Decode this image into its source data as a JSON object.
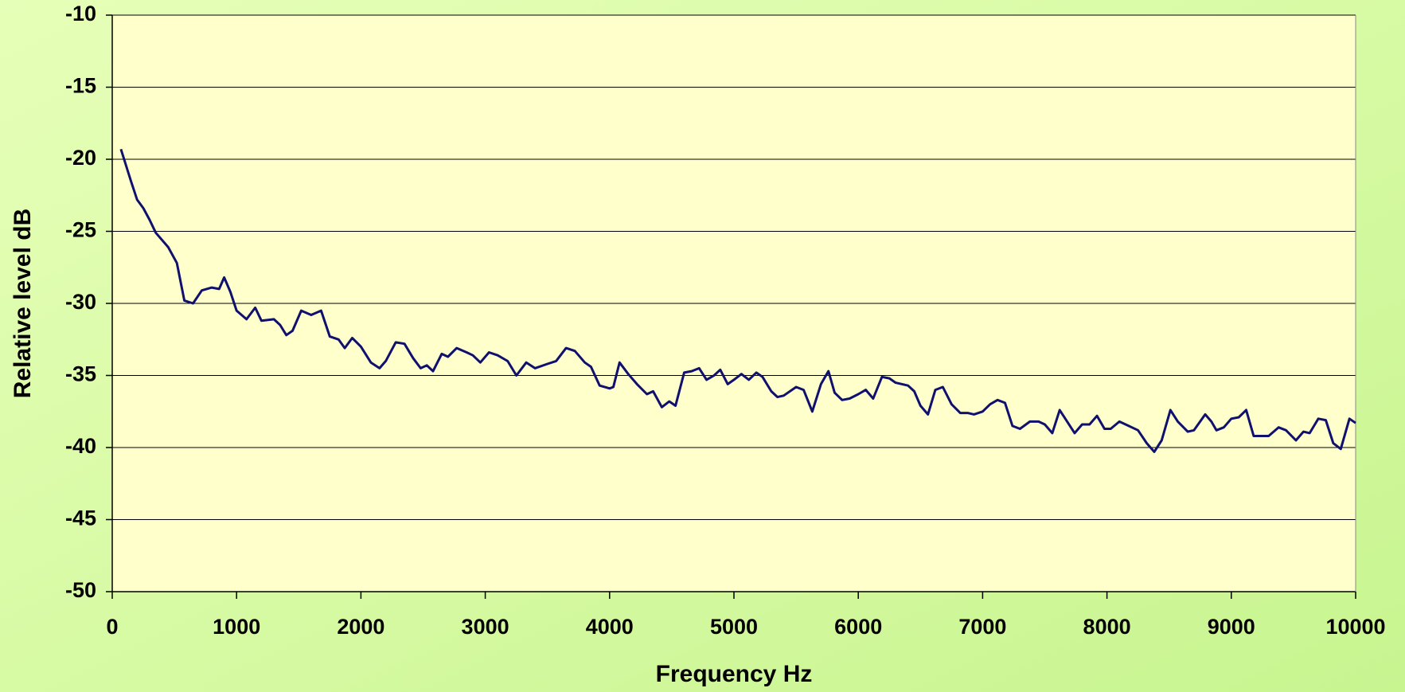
{
  "chart_data": {
    "type": "line",
    "x_label": "Frequency Hz",
    "y_label": "Relative level dB",
    "x": [
      70,
      150,
      200,
      250,
      300,
      350,
      450,
      520,
      580,
      650,
      720,
      800,
      860,
      900,
      950,
      1000,
      1080,
      1150,
      1200,
      1300,
      1350,
      1400,
      1450,
      1520,
      1600,
      1680,
      1750,
      1820,
      1870,
      1930,
      2000,
      2080,
      2150,
      2200,
      2280,
      2350,
      2420,
      2480,
      2530,
      2580,
      2650,
      2700,
      2770,
      2850,
      2900,
      2960,
      3030,
      3100,
      3180,
      3250,
      3330,
      3400,
      3500,
      3570,
      3650,
      3720,
      3800,
      3850,
      3920,
      4000,
      4030,
      4080,
      4150,
      4220,
      4300,
      4350,
      4420,
      4480,
      4530,
      4600,
      4660,
      4720,
      4780,
      4840,
      4890,
      4950,
      5000,
      5060,
      5120,
      5180,
      5230,
      5300,
      5350,
      5400,
      5500,
      5560,
      5630,
      5700,
      5760,
      5810,
      5870,
      5930,
      6000,
      6060,
      6120,
      6190,
      6250,
      6300,
      6400,
      6450,
      6500,
      6560,
      6620,
      6680,
      6750,
      6820,
      6880,
      6930,
      7000,
      7060,
      7120,
      7180,
      7240,
      7300,
      7380,
      7450,
      7500,
      7560,
      7620,
      7680,
      7740,
      7800,
      7860,
      7920,
      7980,
      8030,
      8100,
      8150,
      8250,
      8320,
      8380,
      8440,
      8510,
      8570,
      8650,
      8700,
      8790,
      8840,
      8880,
      8940,
      9000,
      9060,
      9120,
      9180,
      9250,
      9300,
      9380,
      9440,
      9520,
      9580,
      9630,
      9700,
      9760,
      9820,
      9880,
      9950,
      10000
    ],
    "series": [
      {
        "name": "Relative level",
        "color": "#10106e",
        "values": [
          -19.3,
          -21.5,
          -22.8,
          -23.4,
          -24.2,
          -25.1,
          -26.1,
          -27.2,
          -29.8,
          -30.0,
          -29.1,
          -28.9,
          -29.0,
          -28.2,
          -29.2,
          -30.5,
          -31.1,
          -30.3,
          -31.2,
          -31.1,
          -31.5,
          -32.2,
          -31.9,
          -30.5,
          -30.8,
          -30.5,
          -32.3,
          -32.5,
          -33.1,
          -32.4,
          -33.0,
          -34.1,
          -34.5,
          -34.0,
          -32.7,
          -32.8,
          -33.8,
          -34.5,
          -34.3,
          -34.7,
          -33.5,
          -33.7,
          -33.1,
          -33.4,
          -33.6,
          -34.1,
          -33.4,
          -33.6,
          -34.0,
          -35.0,
          -34.1,
          -34.5,
          -34.2,
          -34.0,
          -33.1,
          -33.3,
          -34.1,
          -34.4,
          -35.7,
          -35.9,
          -35.8,
          -34.1,
          -34.9,
          -35.6,
          -36.3,
          -36.1,
          -37.2,
          -36.8,
          -37.1,
          -34.8,
          -34.7,
          -34.5,
          -35.3,
          -35.0,
          -34.6,
          -35.6,
          -35.3,
          -34.9,
          -35.3,
          -34.8,
          -35.1,
          -36.1,
          -36.5,
          -36.4,
          -35.8,
          -36.0,
          -37.5,
          -35.6,
          -34.7,
          -36.2,
          -36.7,
          -36.6,
          -36.3,
          -36.0,
          -36.6,
          -35.1,
          -35.2,
          -35.5,
          -35.7,
          -36.1,
          -37.1,
          -37.7,
          -36.0,
          -35.8,
          -37.0,
          -37.6,
          -37.6,
          -37.7,
          -37.5,
          -37.0,
          -36.7,
          -36.9,
          -38.5,
          -38.7,
          -38.2,
          -38.2,
          -38.4,
          -39.0,
          -37.4,
          -38.2,
          -39.0,
          -38.4,
          -38.4,
          -37.8,
          -38.7,
          -38.7,
          -38.2,
          -38.4,
          -38.8,
          -39.7,
          -40.3,
          -39.5,
          -37.4,
          -38.2,
          -38.9,
          -38.8,
          -37.7,
          -38.2,
          -38.8,
          -38.6,
          -38.0,
          -37.9,
          -37.4,
          -39.2,
          -39.2,
          -39.2,
          -38.6,
          -38.8,
          -39.5,
          -38.9,
          -39.0,
          -38.0,
          -38.1,
          -39.7,
          -40.1,
          -38.0,
          -38.3
        ]
      }
    ],
    "xlim": [
      0,
      10000
    ],
    "xticks": [
      0,
      1000,
      2000,
      3000,
      4000,
      5000,
      6000,
      7000,
      8000,
      9000,
      10000
    ],
    "ylim": [
      -50,
      -10
    ],
    "yticks": [
      -50,
      -45,
      -40,
      -35,
      -30,
      -25,
      -20,
      -15,
      -10
    ],
    "grid": "y",
    "plot_background": "#ffffcc"
  }
}
